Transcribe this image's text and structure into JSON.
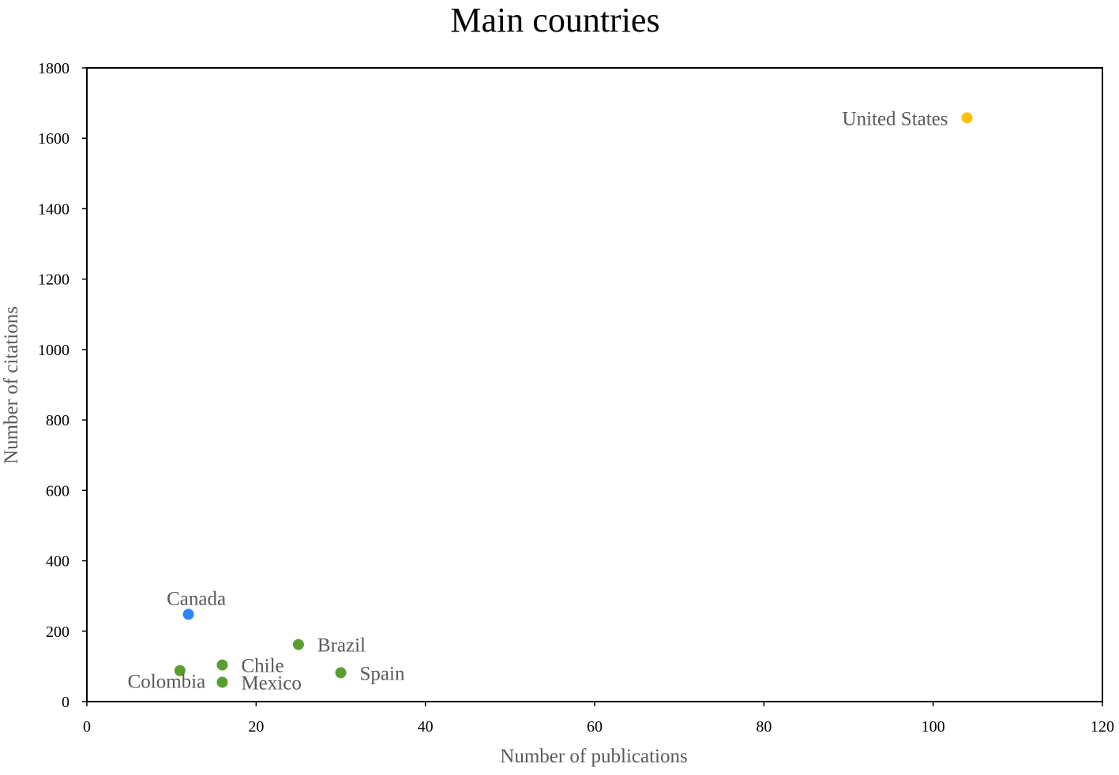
{
  "chart_data": {
    "type": "scatter",
    "title": "Main countries",
    "xlabel": "Number of publications",
    "ylabel": "Number of citations",
    "xlim": [
      0,
      120
    ],
    "ylim": [
      0,
      1800
    ],
    "xticks": [
      0,
      20,
      40,
      60,
      80,
      100,
      120
    ],
    "yticks": [
      0,
      200,
      400,
      600,
      800,
      1000,
      1200,
      1400,
      1600,
      1800
    ],
    "xtick_labels": [
      "0",
      "20",
      "40",
      "60",
      "80",
      "100",
      "120"
    ],
    "ytick_labels": [
      "0",
      "200",
      "400",
      "600",
      "800",
      "1000",
      "1200",
      "1400",
      "1600",
      "1800"
    ],
    "grid": false,
    "legend": "none",
    "points": [
      {
        "label": "United States",
        "x": 104,
        "y": 1658,
        "color": "#FFC000",
        "label_position": "left"
      },
      {
        "label": "Canada",
        "x": 12,
        "y": 248,
        "color": "#2E86F5",
        "label_position": "above"
      },
      {
        "label": "Brazil",
        "x": 25,
        "y": 162,
        "color": "#5A9E2F",
        "label_position": "right"
      },
      {
        "label": "Chile",
        "x": 16,
        "y": 104,
        "color": "#5A9E2F",
        "label_position": "right"
      },
      {
        "label": "Spain",
        "x": 30,
        "y": 82,
        "color": "#5A9E2F",
        "label_position": "right"
      },
      {
        "label": "Colombia",
        "x": 11,
        "y": 88,
        "color": "#5A9E2F",
        "label_position": "below"
      },
      {
        "label": "Mexico",
        "x": 16,
        "y": 55,
        "color": "#5A9E2F",
        "label_position": "right"
      }
    ]
  }
}
